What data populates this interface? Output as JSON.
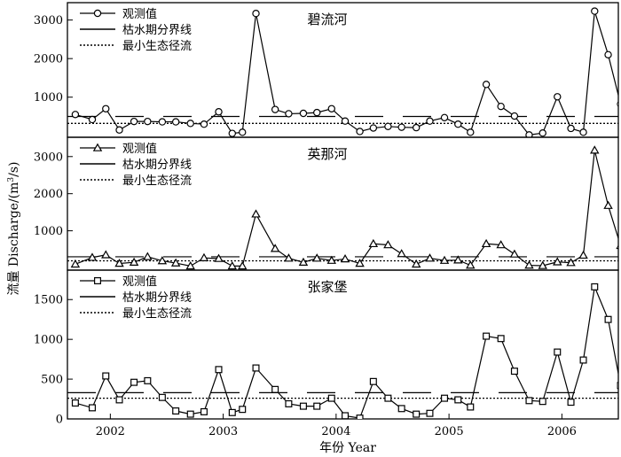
{
  "chart_data": {
    "type": "line",
    "xlabel": "年份 Year",
    "ylabel": "流量 Discharge/(m³/s)",
    "ylabel_parts": [
      "流量 Discharge/(m",
      "3",
      "/s)"
    ],
    "x_tick_labels": [
      "2002",
      "2003",
      "2004",
      "2005",
      "2006"
    ],
    "x_range": [
      2001.62,
      2006.5
    ],
    "legend_labels": [
      "观测值",
      "枯水期分界线",
      "最小生态径流"
    ],
    "panels": [
      {
        "title": "碧流河",
        "marker": "circle",
        "ylim": [
          -40,
          3450
        ],
        "y_ticks": [
          1000,
          2000,
          3000
        ],
        "observed": [
          [
            2001.69,
            550
          ],
          [
            2001.84,
            420
          ],
          [
            2001.96,
            700
          ],
          [
            2002.08,
            150
          ],
          [
            2002.21,
            370
          ],
          [
            2002.33,
            370
          ],
          [
            2002.46,
            360
          ],
          [
            2002.58,
            360
          ],
          [
            2002.71,
            320
          ],
          [
            2002.83,
            300
          ],
          [
            2002.96,
            620
          ],
          [
            2003.08,
            60
          ],
          [
            2003.17,
            90
          ],
          [
            2003.29,
            3170
          ],
          [
            2003.46,
            680
          ],
          [
            2003.58,
            570
          ],
          [
            2003.71,
            580
          ],
          [
            2003.83,
            600
          ],
          [
            2003.96,
            700
          ],
          [
            2004.08,
            380
          ],
          [
            2004.21,
            110
          ],
          [
            2004.33,
            200
          ],
          [
            2004.46,
            240
          ],
          [
            2004.58,
            220
          ],
          [
            2004.71,
            210
          ],
          [
            2004.83,
            380
          ],
          [
            2004.96,
            470
          ],
          [
            2005.08,
            300
          ],
          [
            2005.19,
            90
          ],
          [
            2005.33,
            1330
          ],
          [
            2005.46,
            760
          ],
          [
            2005.58,
            510
          ],
          [
            2005.71,
            20
          ],
          [
            2005.83,
            70
          ],
          [
            2005.96,
            1010
          ],
          [
            2006.08,
            190
          ],
          [
            2006.19,
            90
          ],
          [
            2006.29,
            3230
          ],
          [
            2006.41,
            2100
          ],
          [
            2006.52,
            820
          ]
        ],
        "dry_threshold": 500,
        "min_ecological_flow": 320
      },
      {
        "title": "英那河",
        "marker": "triangle",
        "ylim": [
          -60,
          3520
        ],
        "y_ticks": [
          1000,
          2000,
          3000
        ],
        "observed": [
          [
            2001.69,
            100
          ],
          [
            2001.84,
            280
          ],
          [
            2001.96,
            350
          ],
          [
            2002.08,
            120
          ],
          [
            2002.21,
            150
          ],
          [
            2002.33,
            300
          ],
          [
            2002.46,
            190
          ],
          [
            2002.58,
            130
          ],
          [
            2002.71,
            50
          ],
          [
            2002.83,
            270
          ],
          [
            2002.96,
            250
          ],
          [
            2003.08,
            50
          ],
          [
            2003.17,
            50
          ],
          [
            2003.29,
            1450
          ],
          [
            2003.46,
            520
          ],
          [
            2003.58,
            260
          ],
          [
            2003.71,
            150
          ],
          [
            2003.83,
            260
          ],
          [
            2003.96,
            200
          ],
          [
            2004.08,
            240
          ],
          [
            2004.21,
            120
          ],
          [
            2004.33,
            650
          ],
          [
            2004.46,
            620
          ],
          [
            2004.58,
            380
          ],
          [
            2004.71,
            100
          ],
          [
            2004.83,
            260
          ],
          [
            2004.96,
            200
          ],
          [
            2005.08,
            210
          ],
          [
            2005.19,
            70
          ],
          [
            2005.33,
            650
          ],
          [
            2005.46,
            620
          ],
          [
            2005.58,
            370
          ],
          [
            2005.71,
            70
          ],
          [
            2005.83,
            60
          ],
          [
            2005.96,
            160
          ],
          [
            2006.08,
            140
          ],
          [
            2006.19,
            340
          ],
          [
            2006.29,
            3170
          ],
          [
            2006.41,
            1680
          ],
          [
            2006.52,
            600
          ]
        ],
        "dry_threshold": 300,
        "min_ecological_flow": 190
      },
      {
        "title": "张家堡",
        "marker": "square",
        "ylim": [
          0,
          1870
        ],
        "y_ticks": [
          0,
          500,
          1000,
          1500
        ],
        "observed": [
          [
            2001.69,
            200
          ],
          [
            2001.84,
            140
          ],
          [
            2001.96,
            540
          ],
          [
            2002.08,
            240
          ],
          [
            2002.21,
            460
          ],
          [
            2002.33,
            480
          ],
          [
            2002.46,
            270
          ],
          [
            2002.58,
            100
          ],
          [
            2002.71,
            60
          ],
          [
            2002.83,
            90
          ],
          [
            2002.96,
            620
          ],
          [
            2003.08,
            80
          ],
          [
            2003.17,
            120
          ],
          [
            2003.29,
            640
          ],
          [
            2003.46,
            370
          ],
          [
            2003.58,
            190
          ],
          [
            2003.71,
            160
          ],
          [
            2003.83,
            160
          ],
          [
            2003.96,
            260
          ],
          [
            2004.08,
            40
          ],
          [
            2004.21,
            10
          ],
          [
            2004.33,
            470
          ],
          [
            2004.46,
            260
          ],
          [
            2004.58,
            130
          ],
          [
            2004.71,
            60
          ],
          [
            2004.83,
            70
          ],
          [
            2004.96,
            260
          ],
          [
            2005.08,
            240
          ],
          [
            2005.19,
            150
          ],
          [
            2005.33,
            1040
          ],
          [
            2005.46,
            1010
          ],
          [
            2005.58,
            600
          ],
          [
            2005.71,
            230
          ],
          [
            2005.83,
            220
          ],
          [
            2005.96,
            840
          ],
          [
            2006.08,
            210
          ],
          [
            2006.19,
            740
          ],
          [
            2006.29,
            1660
          ],
          [
            2006.41,
            1250
          ],
          [
            2006.52,
            420
          ]
        ],
        "dry_threshold": 330,
        "min_ecological_flow": 260
      }
    ]
  }
}
